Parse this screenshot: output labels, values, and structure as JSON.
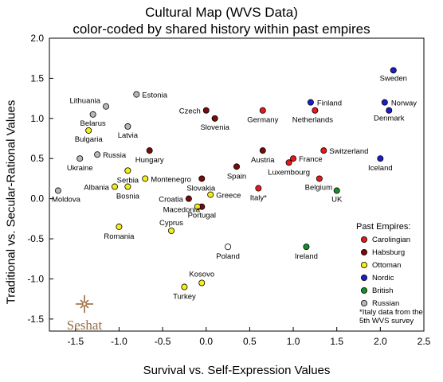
{
  "chart_data": {
    "type": "scatter",
    "title": "Cultural Map (WVS Data)",
    "subtitle": "color-coded by shared history within past empires",
    "xlabel": "Survival vs. Self-Expression Values",
    "ylabel": "Traditional vs. Secular-Rational Values",
    "xlim": [
      -1.8,
      2.5
    ],
    "ylim": [
      -1.65,
      2.0
    ],
    "xticks": [
      "-1.5",
      "-1.0",
      "-0.5",
      "0.0",
      "0.5",
      "1.0",
      "1.5",
      "2.0",
      "2.5"
    ],
    "yticks": [
      "2.0",
      "1.5",
      "1.0",
      "0.5",
      "0.0",
      "-0.5",
      "-1.0",
      "-1.5"
    ],
    "grid": false,
    "legend": {
      "title": "Past Empires:",
      "placement": "right",
      "footnote": [
        "*Italy data from the",
        "5th WVS survey"
      ]
    },
    "groups": [
      {
        "name": "Carolingian",
        "color": "#e8191c"
      },
      {
        "name": "Habsburg",
        "color": "#7a0b0b"
      },
      {
        "name": "Ottoman",
        "color": "#f2ee1b"
      },
      {
        "name": "Nordic",
        "color": "#1a20c8"
      },
      {
        "name": "British",
        "color": "#1a8c2a"
      },
      {
        "name": "Russian",
        "color": "#b8b8b8"
      },
      {
        "name": "",
        "color": "#ffffff"
      }
    ],
    "points": [
      {
        "label": "Sweden",
        "x": 2.15,
        "y": 1.6,
        "group": 3
      },
      {
        "label": "Finland",
        "x": 1.2,
        "y": 1.2,
        "group": 3
      },
      {
        "label": "Norway",
        "x": 2.05,
        "y": 1.2,
        "group": 3
      },
      {
        "label": "Denmark",
        "x": 2.1,
        "y": 1.1,
        "group": 3
      },
      {
        "label": "Iceland",
        "x": 2.0,
        "y": 0.5,
        "group": 3
      },
      {
        "label": "Germany",
        "x": 0.65,
        "y": 1.1,
        "group": 0
      },
      {
        "label": "Netherlands",
        "x": 1.25,
        "y": 1.1,
        "group": 0
      },
      {
        "label": "Switzerland",
        "x": 1.35,
        "y": 0.6,
        "group": 0
      },
      {
        "label": "France",
        "x": 1.0,
        "y": 0.5,
        "group": 0
      },
      {
        "label": "Luxembourg",
        "x": 0.95,
        "y": 0.45,
        "group": 0
      },
      {
        "label": "Belgium",
        "x": 1.3,
        "y": 0.25,
        "group": 0
      },
      {
        "label": "Italy*",
        "x": 0.6,
        "y": 0.13,
        "group": 0
      },
      {
        "label": "Czech",
        "x": 0.0,
        "y": 1.1,
        "group": 1
      },
      {
        "label": "Slovenia",
        "x": 0.1,
        "y": 1.0,
        "group": 1
      },
      {
        "label": "Hungary",
        "x": -0.65,
        "y": 0.6,
        "group": 1
      },
      {
        "label": "Austria",
        "x": 0.65,
        "y": 0.6,
        "group": 1
      },
      {
        "label": "Spain",
        "x": 0.35,
        "y": 0.4,
        "group": 1
      },
      {
        "label": "Slovakia",
        "x": -0.05,
        "y": 0.25,
        "group": 1
      },
      {
        "label": "Croatia",
        "x": -0.2,
        "y": 0.0,
        "group": 1
      },
      {
        "label": "Portugal",
        "x": -0.05,
        "y": -0.1,
        "group": 1
      },
      {
        "label": "Serbia",
        "x": -0.9,
        "y": 0.35,
        "group": 2
      },
      {
        "label": "Montenegro",
        "x": -0.7,
        "y": 0.25,
        "group": 2
      },
      {
        "label": "Albania",
        "x": -1.05,
        "y": 0.15,
        "group": 2
      },
      {
        "label": "Bosnia",
        "x": -0.9,
        "y": 0.15,
        "group": 2
      },
      {
        "label": "Greece",
        "x": 0.05,
        "y": 0.05,
        "group": 2
      },
      {
        "label": "Macedonia",
        "x": -0.1,
        "y": -0.1,
        "group": 2
      },
      {
        "label": "Bulgaria",
        "x": -1.35,
        "y": 0.85,
        "group": 2
      },
      {
        "label": "Romania",
        "x": -1.0,
        "y": -0.35,
        "group": 2
      },
      {
        "label": "Cyprus",
        "x": -0.4,
        "y": -0.4,
        "group": 2
      },
      {
        "label": "Kosovo",
        "x": -0.05,
        "y": -1.05,
        "group": 2
      },
      {
        "label": "Turkey",
        "x": -0.25,
        "y": -1.1,
        "group": 2
      },
      {
        "label": "UK",
        "x": 1.5,
        "y": 0.1,
        "group": 4
      },
      {
        "label": "Ireland",
        "x": 1.15,
        "y": -0.6,
        "group": 4
      },
      {
        "label": "Estonia",
        "x": -0.8,
        "y": 1.3,
        "group": 5
      },
      {
        "label": "Lithuania",
        "x": -1.15,
        "y": 1.15,
        "group": 5
      },
      {
        "label": "Belarus",
        "x": -1.3,
        "y": 1.05,
        "group": 5
      },
      {
        "label": "Latvia",
        "x": -0.9,
        "y": 0.9,
        "group": 5
      },
      {
        "label": "Russia",
        "x": -1.25,
        "y": 0.55,
        "group": 5
      },
      {
        "label": "Ukraine",
        "x": -1.45,
        "y": 0.5,
        "group": 5
      },
      {
        "label": "Moldova",
        "x": -1.7,
        "y": 0.1,
        "group": 5
      },
      {
        "label": "Poland",
        "x": 0.25,
        "y": -0.6,
        "group": 6
      }
    ]
  },
  "logo": {
    "text": "Seshat"
  }
}
